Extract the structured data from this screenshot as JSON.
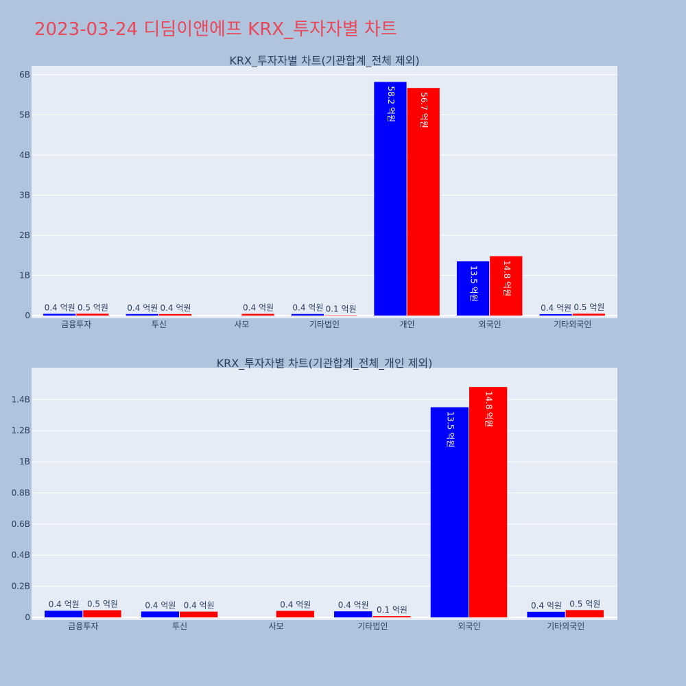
{
  "page": {
    "title": "2023-03-24 디딤이앤에프 KRX_투자자별 차트"
  },
  "chart_data": [
    {
      "type": "bar",
      "title": "KRX_투자자별 차트(기관합계_전체 제외)",
      "categories": [
        "금융투자",
        "투신",
        "사모",
        "기타법인",
        "개인",
        "외국인",
        "기타외국인"
      ],
      "series": [
        {
          "color": "#0000ff",
          "values": [
            43000000,
            38000000,
            0,
            39000000,
            5820000000,
            1350000000,
            36000000
          ],
          "labels": [
            "0.4 억원",
            "0.4 억원",
            "",
            "0.4 억원",
            "58.2 억원",
            "13.5 억원",
            "0.4 억원"
          ]
        },
        {
          "color": "#ff0000",
          "values": [
            46000000,
            37000000,
            42000000,
            8000000,
            5670000000,
            1480000000,
            47000000
          ],
          "labels": [
            "0.5 억원",
            "0.4 억원",
            "0.4 억원",
            "0.1 억원",
            "56.7 억원",
            "14.8 억원",
            "0.5 억원"
          ]
        }
      ],
      "ylim": [
        0,
        6050000000
      ],
      "yticks": [
        0,
        1000000000,
        2000000000,
        3000000000,
        4000000000,
        5000000000,
        6000000000
      ],
      "ytick_labels": [
        "0",
        "1B",
        "2B",
        "3B",
        "4B",
        "5B",
        "6B"
      ],
      "grid": true
    },
    {
      "type": "bar",
      "title": "KRX_투자자별 차트(기관합계_전체_개인 제외)",
      "categories": [
        "금융투자",
        "투신",
        "사모",
        "기타법인",
        "외국인",
        "기타외국인"
      ],
      "series": [
        {
          "color": "#0000ff",
          "values": [
            43000000,
            38000000,
            0,
            39000000,
            1350000000,
            36000000
          ],
          "labels": [
            "0.4 억원",
            "0.4 억원",
            "",
            "0.4 억원",
            "13.5 억원",
            "0.4 억원"
          ]
        },
        {
          "color": "#ff0000",
          "values": [
            46000000,
            37000000,
            42000000,
            8000000,
            1480000000,
            47000000
          ],
          "labels": [
            "0.5 억원",
            "0.4 억원",
            "0.4 억원",
            "0.1 억원",
            "14.8 억원",
            "0.5 억원"
          ]
        }
      ],
      "ylim": [
        0,
        1560000000
      ],
      "yticks": [
        0,
        200000000,
        400000000,
        600000000,
        800000000,
        1000000000,
        1200000000,
        1400000000
      ],
      "ytick_labels": [
        "0",
        "0.2B",
        "0.4B",
        "0.6B",
        "0.8B",
        "1B",
        "1.2B",
        "1.4B"
      ],
      "grid": true
    }
  ]
}
